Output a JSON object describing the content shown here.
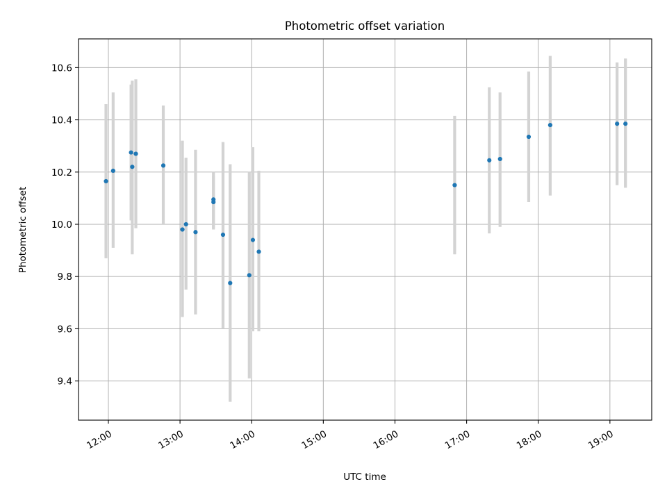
{
  "chart_data": {
    "type": "scatter",
    "title": "Photometric offset variation",
    "xlabel": "UTC time",
    "ylabel": "Photometric offset",
    "xlim": [
      "11:35",
      "19:35"
    ],
    "ylim": [
      9.25,
      10.71
    ],
    "grid": true,
    "legend": "none",
    "colors": {
      "point": "#1f77b4",
      "errorbar": "#d3d3d3",
      "grid": "#b0b0b0"
    },
    "xticks": [
      "12:00",
      "13:00",
      "14:00",
      "15:00",
      "16:00",
      "17:00",
      "18:00",
      "19:00"
    ],
    "yticks": [
      "9.4",
      "9.6",
      "9.8",
      "10.0",
      "10.2",
      "10.4",
      "10.6"
    ],
    "points": [
      {
        "x": "11:58",
        "y": 10.165,
        "err_low": 9.87,
        "err_high": 10.46
      },
      {
        "x": "12:04",
        "y": 10.205,
        "err_low": 9.91,
        "err_high": 10.505
      },
      {
        "x": "12:19",
        "y": 10.275,
        "err_low": 10.015,
        "err_high": 10.535
      },
      {
        "x": "12:20",
        "y": 10.22,
        "err_low": 9.885,
        "err_high": 10.55
      },
      {
        "x": "12:23",
        "y": 10.27,
        "err_low": 9.985,
        "err_high": 10.555
      },
      {
        "x": "12:46",
        "y": 10.225,
        "err_low": 10.0,
        "err_high": 10.455
      },
      {
        "x": "13:02",
        "y": 9.98,
        "err_low": 9.645,
        "err_high": 10.32
      },
      {
        "x": "13:05",
        "y": 10.0,
        "err_low": 9.75,
        "err_high": 10.255
      },
      {
        "x": "13:13",
        "y": 9.97,
        "err_low": 9.655,
        "err_high": 10.285
      },
      {
        "x": "13:28",
        "y": 10.095,
        "err_low": 9.98,
        "err_high": 10.2
      },
      {
        "x": "13:28",
        "y": 10.085,
        "err_low": 9.985,
        "err_high": 10.185
      },
      {
        "x": "13:36",
        "y": 9.96,
        "err_low": 9.6,
        "err_high": 10.315
      },
      {
        "x": "13:42",
        "y": 9.775,
        "err_low": 9.32,
        "err_high": 10.23
      },
      {
        "x": "13:58",
        "y": 9.805,
        "err_low": 9.41,
        "err_high": 10.2
      },
      {
        "x": "14:01",
        "y": 9.94,
        "err_low": 9.59,
        "err_high": 10.295
      },
      {
        "x": "14:06",
        "y": 9.895,
        "err_low": 9.59,
        "err_high": 10.205
      },
      {
        "x": "16:50",
        "y": 10.15,
        "err_low": 9.885,
        "err_high": 10.415
      },
      {
        "x": "17:19",
        "y": 10.245,
        "err_low": 9.965,
        "err_high": 10.525
      },
      {
        "x": "17:28",
        "y": 10.25,
        "err_low": 9.99,
        "err_high": 10.505
      },
      {
        "x": "17:52",
        "y": 10.335,
        "err_low": 10.085,
        "err_high": 10.585
      },
      {
        "x": "18:10",
        "y": 10.38,
        "err_low": 10.11,
        "err_high": 10.645
      },
      {
        "x": "19:06",
        "y": 10.385,
        "err_low": 10.15,
        "err_high": 10.62
      },
      {
        "x": "19:13",
        "y": 10.385,
        "err_low": 10.14,
        "err_high": 10.635
      }
    ]
  }
}
